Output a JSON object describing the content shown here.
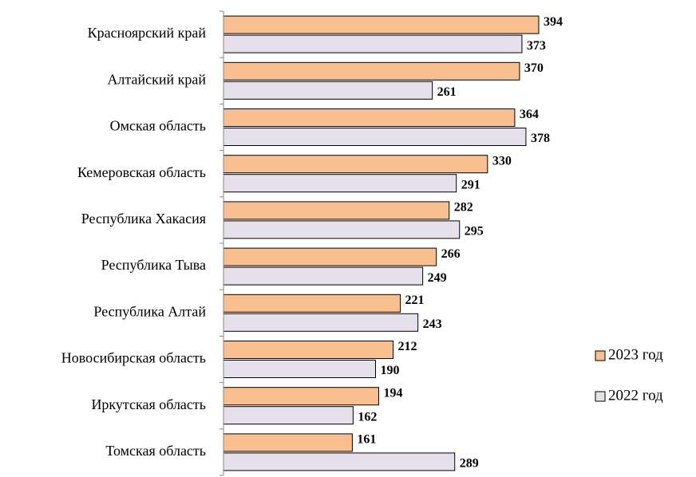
{
  "chart_data": {
    "type": "hbar",
    "categories": [
      "Красноярский край",
      "Алтайский край",
      "Омская область",
      "Кемеровская область",
      "Республика Хакасия",
      "Республика Тыва",
      "Республика Алтай",
      "Новосибирская область",
      "Иркутская область",
      "Томская область"
    ],
    "series": [
      {
        "name": "2023 год",
        "color": "#f9bf8f",
        "values": [
          394,
          370,
          364,
          330,
          282,
          266,
          221,
          212,
          194,
          161
        ]
      },
      {
        "name": "2022 год",
        "color": "#e6e0ec",
        "values": [
          373,
          261,
          378,
          291,
          295,
          249,
          243,
          190,
          162,
          289
        ]
      }
    ],
    "xlim": [
      0,
      400
    ],
    "legend": "right"
  }
}
